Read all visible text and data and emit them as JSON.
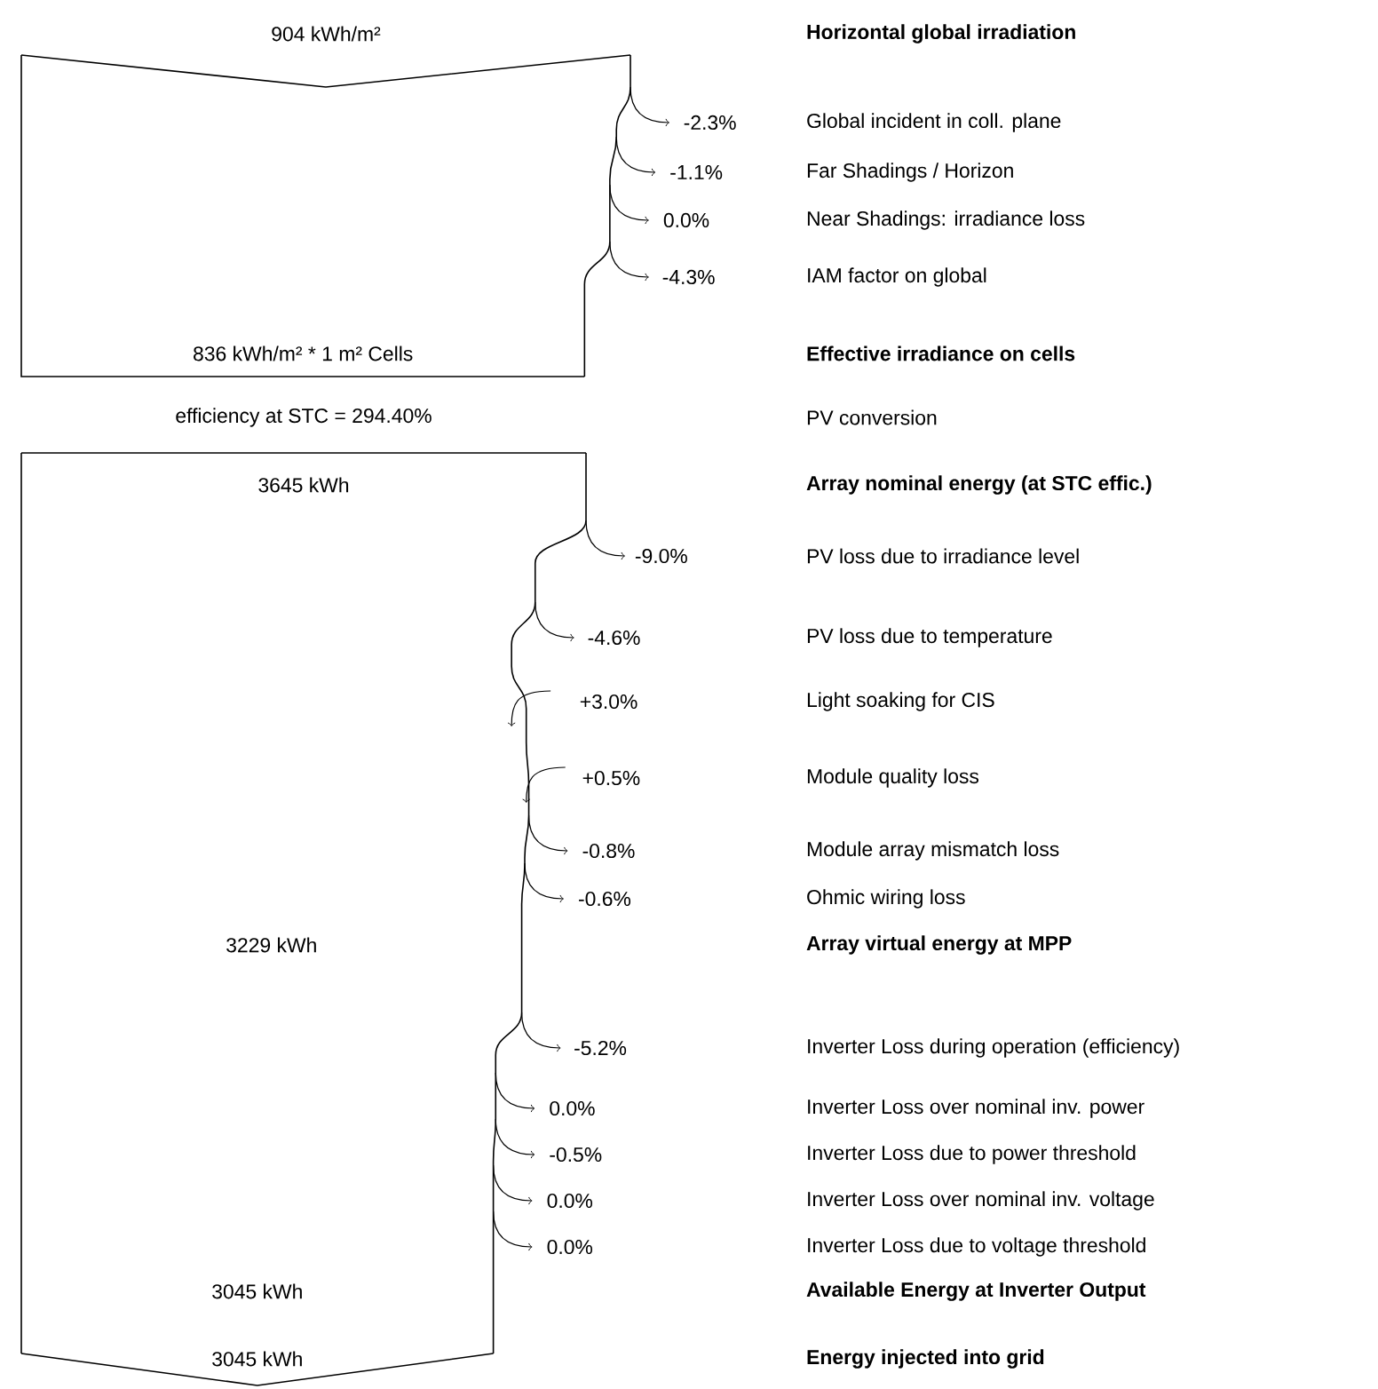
{
  "chart_data": [
    {
      "type": "other",
      "categories": [
        "Horizontal global irradiation",
        "Global incident in coll. plane",
        "Far Shadings / Horizon",
        "Near Shadings: irradiance loss",
        "IAM factor on global",
        "Effective irradiance on cells"
      ],
      "values": [
        null,
        -2.3,
        -1.1,
        0.0,
        -4.3,
        null
      ],
      "value_labels": [
        "904 kWh/m²",
        "-2.3%",
        "-1.1%",
        "0.0%",
        "-4.3%",
        "836 kWh/m² * 1 m² Cells"
      ]
    },
    {
      "type": "other",
      "title": "PV conversion",
      "subtitle": "efficiency at STC = 294.40%",
      "categories": [
        "Array nominal energy (at STC effic.)",
        "PV loss due to irradiance level",
        "PV loss due to temperature",
        "Light soaking for CIS",
        "Module quality loss",
        "Module array mismatch loss",
        "Ohmic wiring loss",
        "Array virtual energy at MPP",
        "Inverter Loss during operation (efficiency)",
        "Inverter Loss over nominal inv. power",
        "Inverter Loss due to power threshold",
        "Inverter Loss over nominal inv. voltage",
        "Inverter Loss due to voltage threshold",
        "Available Energy at Inverter Output",
        "Energy injected into grid"
      ],
      "values": [
        null,
        -9.0,
        -4.6,
        3.0,
        0.5,
        -0.8,
        -0.6,
        null,
        -5.2,
        0.0,
        -0.5,
        0.0,
        0.0,
        null,
        null
      ],
      "value_labels": [
        "3645 kWh",
        "-9.0%",
        "-4.6%",
        "+3.0%",
        "+0.5%",
        "-0.8%",
        "-0.6%",
        "3229 kWh",
        "-5.2%",
        "0.0%",
        "-0.5%",
        "0.0%",
        "0.0%",
        "3045 kWh",
        "3045 kWh"
      ]
    }
  ]
}
